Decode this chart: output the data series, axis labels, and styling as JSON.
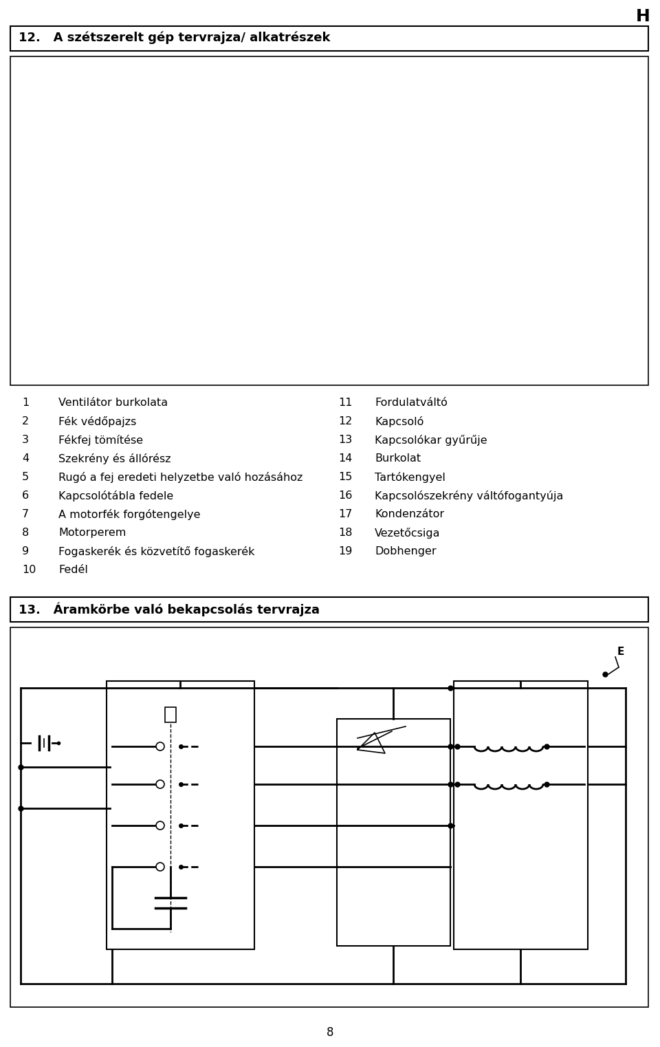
{
  "page_header": "H",
  "section12_title": "12.   A szétszerelt gép tervrajza/ alkatrészek",
  "section13_title": "13.   Áramkörbe való bekapcsolás tervrajza",
  "page_number": "8",
  "parts_list": [
    {
      "num": "1",
      "left_desc": "Ventilátor burkolata",
      "right_num": "11",
      "right_desc": "Fordulatváltó"
    },
    {
      "num": "2",
      "left_desc": "Fék védőpajzs",
      "right_num": "12",
      "right_desc": "Kapcsoló"
    },
    {
      "num": "3",
      "left_desc": "Fékfej tömítése",
      "right_num": "13",
      "right_desc": "Kapcsolókar gyűrűje"
    },
    {
      "num": "4",
      "left_desc": "Szekrény és állórész",
      "right_num": "14",
      "right_desc": "Burkolat"
    },
    {
      "num": "5",
      "left_desc": "Rugó a fej eredeti helyzetbe való hozásához",
      "right_num": "15",
      "right_desc": "Tartókengyel"
    },
    {
      "num": "6",
      "left_desc": "Kapcsolótábla fedele",
      "right_num": "16",
      "right_desc": "Kapcsolószekrény váltófogantyúja"
    },
    {
      "num": "7",
      "left_desc": "A motorfék forgótengelye",
      "right_num": "17",
      "right_desc": "Kondenzátor"
    },
    {
      "num": "8",
      "left_desc": "Motorperem",
      "right_num": "18",
      "right_desc": "Vezetőcsiga"
    },
    {
      "num": "9",
      "left_desc": "Fogaskerék és közvetítő fogaskerék",
      "right_num": "19",
      "right_desc": "Dobhenger"
    },
    {
      "num": "10",
      "left_desc": "Fedél",
      "right_num": "",
      "right_desc": ""
    }
  ],
  "bg_color": "#ffffff",
  "text_color": "#000000",
  "border_color": "#000000"
}
